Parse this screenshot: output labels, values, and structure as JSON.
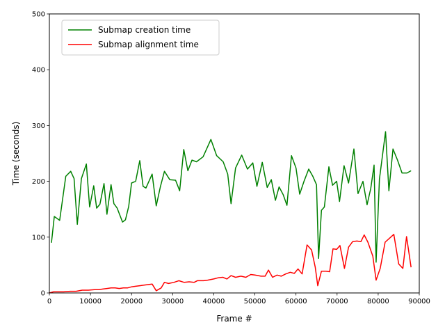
{
  "chart_data": {
    "type": "line",
    "xlabel": "Frame #",
    "ylabel": "Time (seconds)",
    "xlim": [
      0,
      90000
    ],
    "ylim": [
      0,
      500
    ],
    "xticks": [
      0,
      10000,
      20000,
      30000,
      40000,
      50000,
      60000,
      70000,
      80000,
      90000
    ],
    "yticks": [
      0,
      100,
      200,
      300,
      400,
      500
    ],
    "grid": false,
    "legend_position": "top-left",
    "series": [
      {
        "name": "Submap creation time",
        "color": "#008000",
        "points": [
          [
            500,
            90
          ],
          [
            1200,
            137
          ],
          [
            2500,
            130
          ],
          [
            4000,
            209
          ],
          [
            5200,
            218
          ],
          [
            6000,
            205
          ],
          [
            6800,
            123
          ],
          [
            7800,
            205
          ],
          [
            9000,
            231
          ],
          [
            9800,
            154
          ],
          [
            10800,
            192
          ],
          [
            11500,
            152
          ],
          [
            12300,
            159
          ],
          [
            13300,
            196
          ],
          [
            14000,
            141
          ],
          [
            15000,
            194
          ],
          [
            15700,
            160
          ],
          [
            16500,
            152
          ],
          [
            17800,
            127
          ],
          [
            18500,
            131
          ],
          [
            19300,
            155
          ],
          [
            20000,
            197
          ],
          [
            21000,
            200
          ],
          [
            22000,
            237
          ],
          [
            22800,
            191
          ],
          [
            23500,
            188
          ],
          [
            25000,
            213
          ],
          [
            26000,
            156
          ],
          [
            27000,
            190
          ],
          [
            28000,
            218
          ],
          [
            29300,
            203
          ],
          [
            30700,
            202
          ],
          [
            31700,
            183
          ],
          [
            32700,
            257
          ],
          [
            33700,
            219
          ],
          [
            34700,
            238
          ],
          [
            35800,
            235
          ],
          [
            37400,
            244
          ],
          [
            39300,
            275
          ],
          [
            40700,
            246
          ],
          [
            42300,
            235
          ],
          [
            43400,
            213
          ],
          [
            44200,
            160
          ],
          [
            45300,
            224
          ],
          [
            46800,
            247
          ],
          [
            48200,
            222
          ],
          [
            49500,
            233
          ],
          [
            50500,
            191
          ],
          [
            51800,
            234
          ],
          [
            53000,
            189
          ],
          [
            54000,
            203
          ],
          [
            55000,
            166
          ],
          [
            55900,
            190
          ],
          [
            56900,
            176
          ],
          [
            57800,
            157
          ],
          [
            58900,
            246
          ],
          [
            60000,
            224
          ],
          [
            60900,
            177
          ],
          [
            62000,
            201
          ],
          [
            63100,
            222
          ],
          [
            64100,
            209
          ],
          [
            65000,
            194
          ],
          [
            65500,
            62
          ],
          [
            66200,
            148
          ],
          [
            66900,
            154
          ],
          [
            68000,
            226
          ],
          [
            68900,
            193
          ],
          [
            69900,
            200
          ],
          [
            70600,
            164
          ],
          [
            71700,
            228
          ],
          [
            72800,
            197
          ],
          [
            74100,
            258
          ],
          [
            75100,
            178
          ],
          [
            76300,
            200
          ],
          [
            77300,
            158
          ],
          [
            78200,
            187
          ],
          [
            79000,
            229
          ],
          [
            79500,
            55
          ],
          [
            80300,
            204
          ],
          [
            81800,
            289
          ],
          [
            82600,
            183
          ],
          [
            83600,
            258
          ],
          [
            84700,
            238
          ],
          [
            85800,
            215
          ],
          [
            87000,
            215
          ],
          [
            88000,
            219
          ]
        ]
      },
      {
        "name": "Submap alignment time",
        "color": "#ff0000",
        "points": [
          [
            0,
            0
          ],
          [
            1000,
            2
          ],
          [
            2000,
            2
          ],
          [
            3500,
            2
          ],
          [
            5000,
            3
          ],
          [
            6500,
            3
          ],
          [
            8000,
            5
          ],
          [
            9500,
            5
          ],
          [
            11000,
            6
          ],
          [
            12000,
            6
          ],
          [
            13000,
            7
          ],
          [
            14000,
            8
          ],
          [
            15000,
            9
          ],
          [
            16000,
            9
          ],
          [
            17000,
            8
          ],
          [
            18000,
            9
          ],
          [
            19000,
            9
          ],
          [
            20000,
            11
          ],
          [
            21000,
            12
          ],
          [
            22000,
            13
          ],
          [
            23000,
            14
          ],
          [
            24000,
            15
          ],
          [
            25000,
            16
          ],
          [
            26000,
            4
          ],
          [
            27200,
            9
          ],
          [
            28000,
            19
          ],
          [
            29000,
            17
          ],
          [
            30300,
            19
          ],
          [
            31500,
            22
          ],
          [
            32800,
            19
          ],
          [
            34000,
            20
          ],
          [
            35200,
            19
          ],
          [
            36000,
            22
          ],
          [
            37500,
            22
          ],
          [
            38500,
            23
          ],
          [
            40000,
            25
          ],
          [
            41000,
            27
          ],
          [
            42200,
            28
          ],
          [
            43200,
            25
          ],
          [
            44200,
            31
          ],
          [
            45300,
            28
          ],
          [
            46600,
            30
          ],
          [
            47800,
            28
          ],
          [
            49000,
            33
          ],
          [
            50000,
            32
          ],
          [
            51500,
            30
          ],
          [
            52500,
            30
          ],
          [
            53300,
            41
          ],
          [
            54300,
            28
          ],
          [
            55400,
            32
          ],
          [
            56400,
            30
          ],
          [
            57500,
            34
          ],
          [
            58600,
            37
          ],
          [
            59600,
            35
          ],
          [
            60500,
            43
          ],
          [
            61500,
            34
          ],
          [
            62700,
            86
          ],
          [
            63800,
            77
          ],
          [
            64700,
            46
          ],
          [
            65300,
            13
          ],
          [
            66200,
            39
          ],
          [
            67300,
            39
          ],
          [
            68200,
            38
          ],
          [
            69000,
            79
          ],
          [
            69900,
            78
          ],
          [
            70700,
            85
          ],
          [
            71800,
            44
          ],
          [
            72800,
            82
          ],
          [
            73800,
            92
          ],
          [
            74800,
            93
          ],
          [
            75800,
            92
          ],
          [
            76600,
            104
          ],
          [
            77500,
            91
          ],
          [
            78700,
            66
          ],
          [
            79500,
            23
          ],
          [
            80500,
            44
          ],
          [
            81700,
            91
          ],
          [
            82600,
            97
          ],
          [
            83800,
            105
          ],
          [
            85000,
            52
          ],
          [
            86000,
            44
          ],
          [
            86900,
            101
          ],
          [
            88000,
            46
          ]
        ]
      }
    ]
  }
}
